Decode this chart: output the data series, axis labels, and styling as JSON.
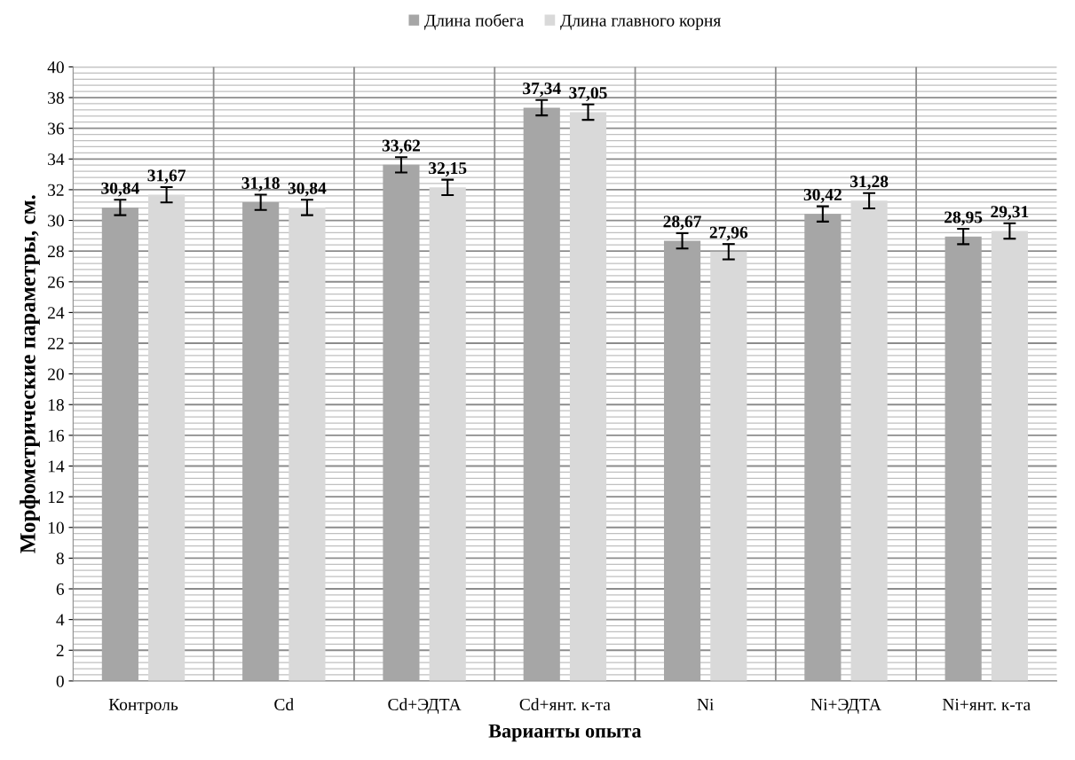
{
  "chart_data": {
    "type": "bar",
    "categories": [
      "Контроль",
      "Cd",
      "Cd+ЭДТА",
      "Cd+янт. к-та",
      "Ni",
      "Ni+ЭДТА",
      "Ni+янт. к-та"
    ],
    "series": [
      {
        "name": "Длина побега",
        "color": "#a6a6a6",
        "values": [
          30.84,
          31.18,
          33.62,
          37.34,
          28.67,
          30.42,
          28.95
        ],
        "errors": [
          0.5,
          0.5,
          0.5,
          0.5,
          0.5,
          0.5,
          0.5
        ],
        "value_labels": [
          "30,84",
          "31,18",
          "33,62",
          "37,34",
          "28,67",
          "30,42",
          "28,95"
        ]
      },
      {
        "name": "Длина главного корня",
        "color": "#d9d9d9",
        "values": [
          31.67,
          30.84,
          32.15,
          37.05,
          27.96,
          31.28,
          29.31
        ],
        "errors": [
          0.5,
          0.5,
          0.5,
          0.5,
          0.5,
          0.5,
          0.5
        ],
        "value_labels": [
          "31,67",
          "30,84",
          "32,15",
          "37,05",
          "27,96",
          "31,28",
          "29,31"
        ]
      }
    ],
    "xlabel": "Варианты опыта",
    "ylabel": "Морфометрические параметры, см.",
    "ylim": [
      0,
      40
    ],
    "yticks": [
      0,
      2,
      4,
      6,
      8,
      10,
      12,
      14,
      16,
      18,
      20,
      22,
      24,
      26,
      28,
      30,
      32,
      34,
      36,
      38,
      40
    ],
    "grid": true,
    "legend": "top"
  }
}
